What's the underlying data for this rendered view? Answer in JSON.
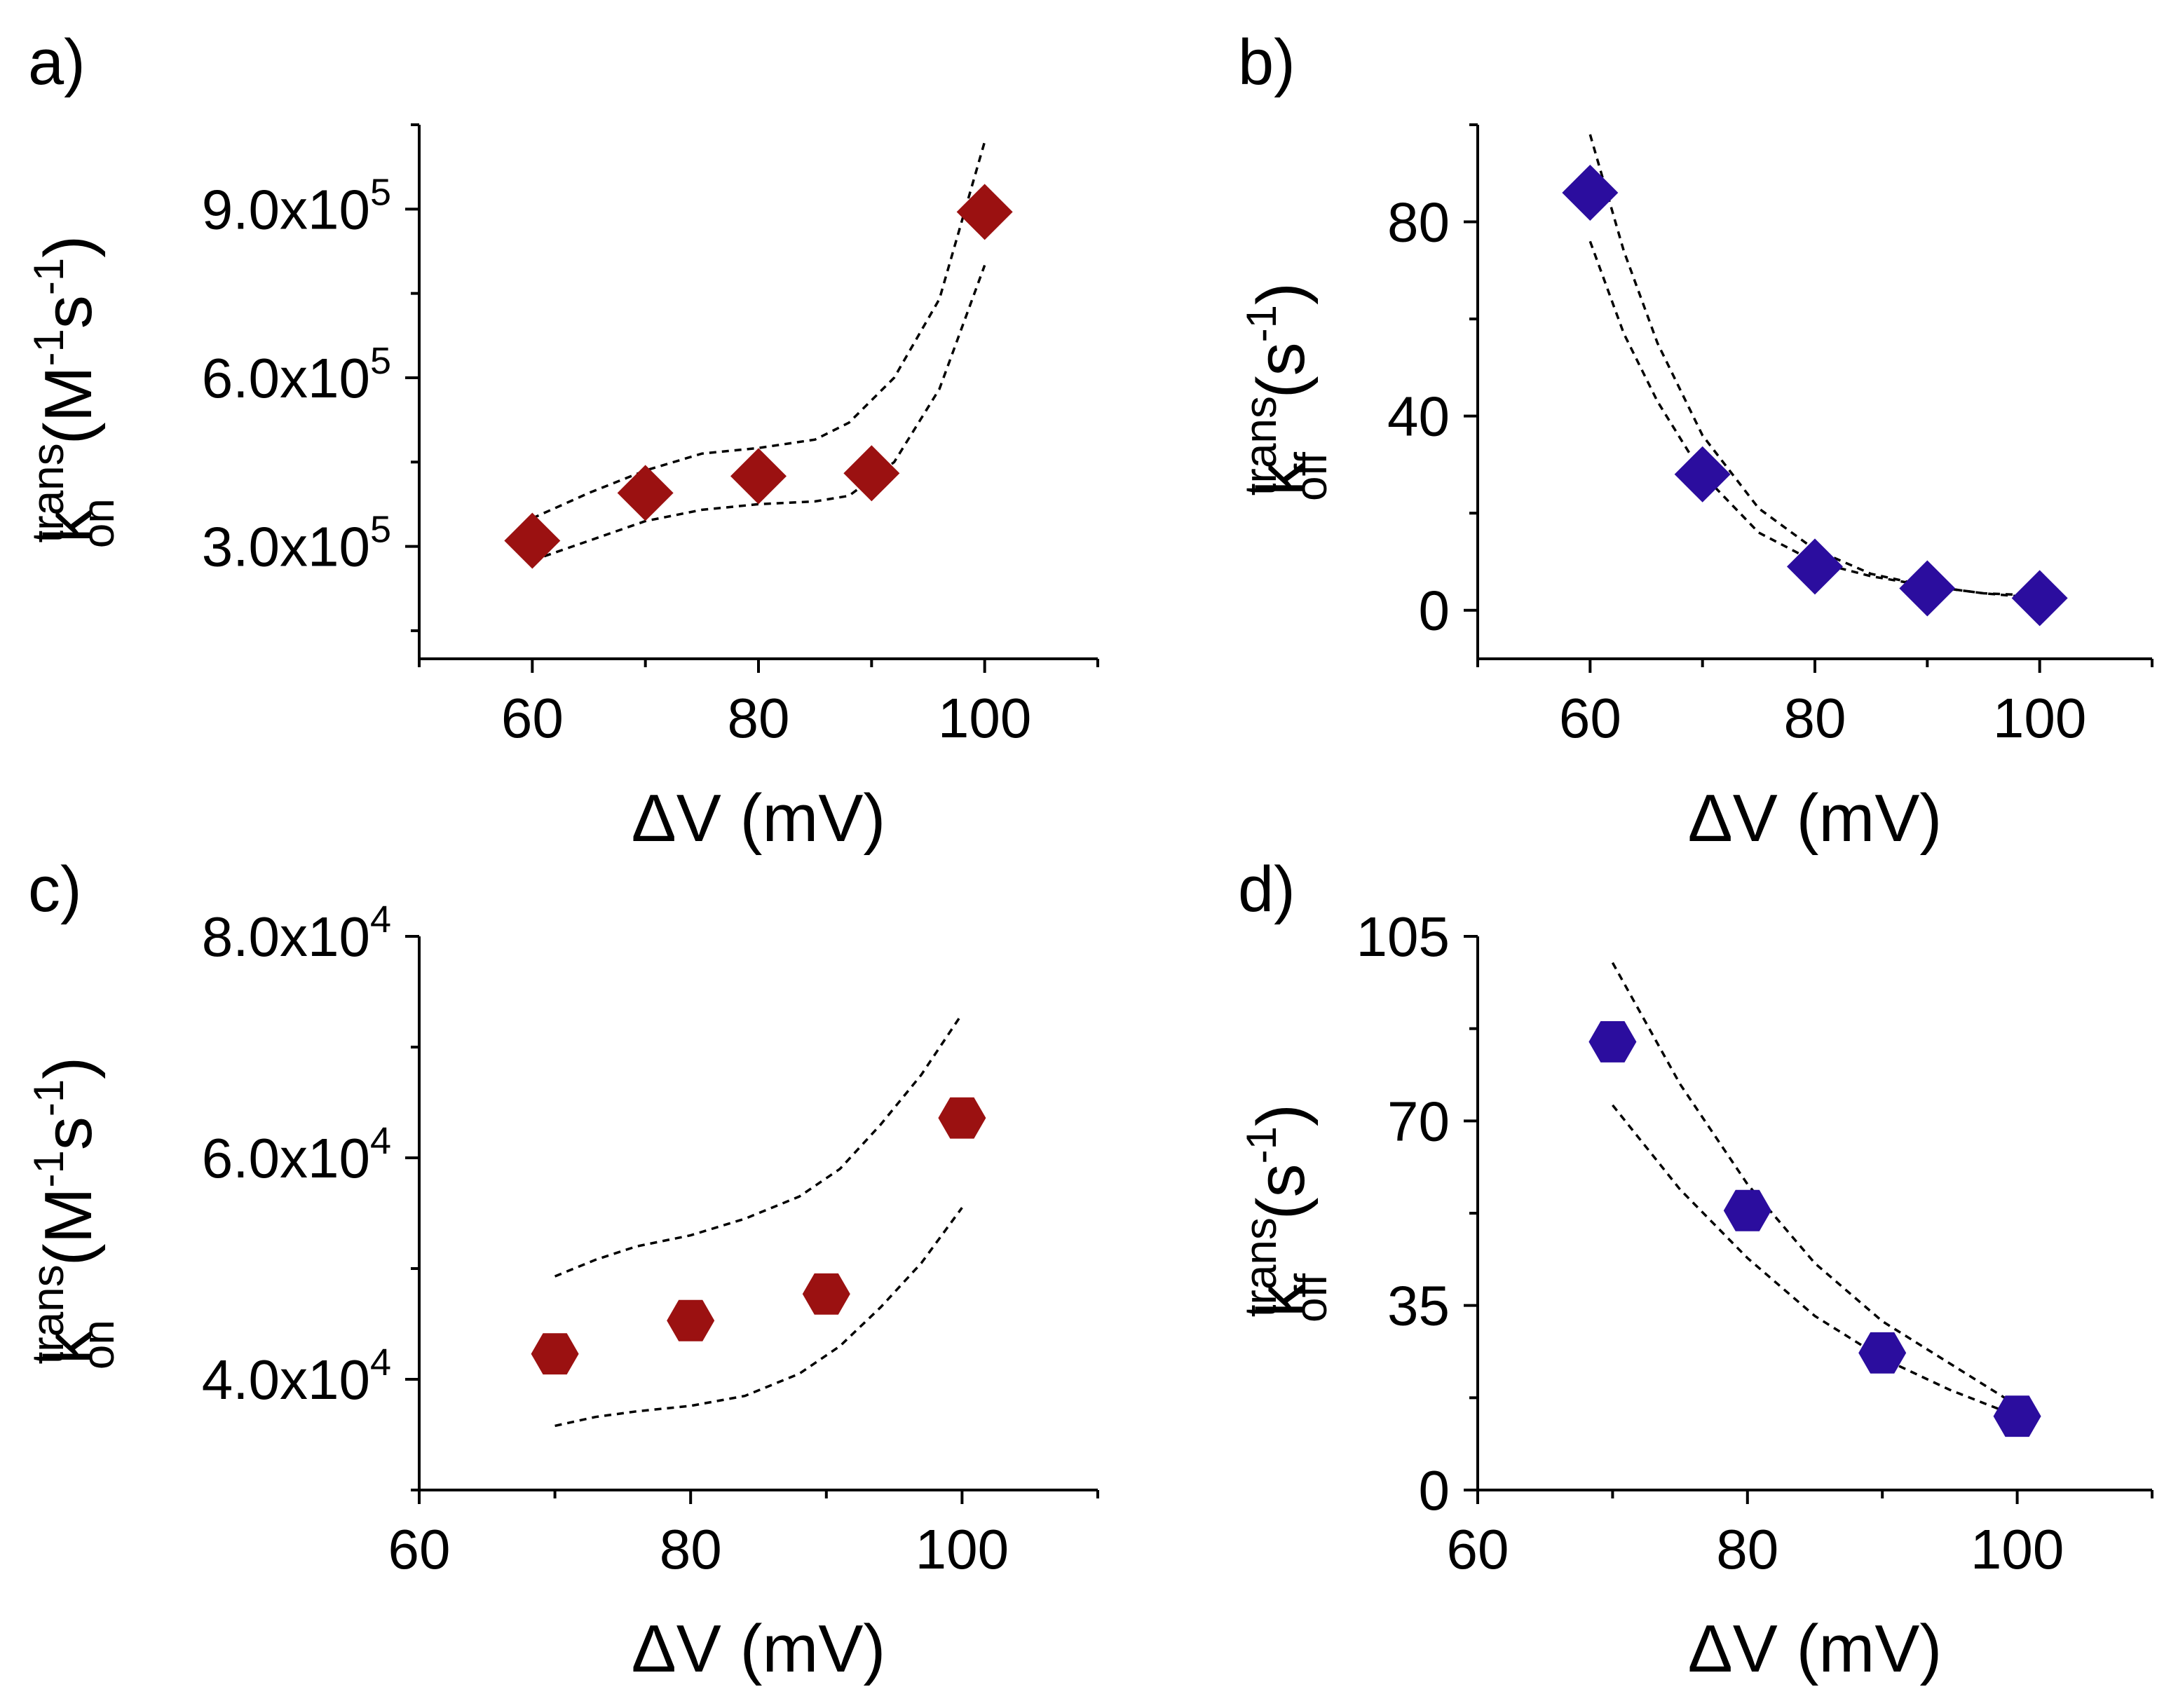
{
  "colors": {
    "red": "#9b1111",
    "blue": "#2b0d9e"
  },
  "chart_data": [
    {
      "panel": "a)",
      "type": "scatter",
      "marker": "diamond",
      "color": "red",
      "xlabel": "ΔV (mV)",
      "ylabel": {
        "symbol": "k",
        "sup": "trans",
        "sub": "on",
        "units": "(M",
        "u_sup1": "-1",
        "u_mid": "s",
        "u_sup2": "-1",
        "close": ")"
      },
      "xlim": [
        50,
        110
      ],
      "ylim": [
        100000,
        1050000
      ],
      "xticks": [
        60,
        80,
        100
      ],
      "xtick_labels": [
        "60",
        "80",
        "100"
      ],
      "yticks": [
        300000,
        600000,
        900000
      ],
      "ytick_labels": [
        {
          "mantissa": "3.0x10",
          "exp": "5"
        },
        {
          "mantissa": "6.0x10",
          "exp": "5"
        },
        {
          "mantissa": "9.0x10",
          "exp": "5"
        }
      ],
      "x": [
        60,
        70,
        80,
        90,
        100
      ],
      "y": [
        310000,
        395000,
        425000,
        430000,
        895000
      ],
      "bands": [
        {
          "name": "upper",
          "x": [
            60,
            65,
            70,
            75,
            80,
            85,
            88,
            92,
            96,
            100
          ],
          "y": [
            350000,
            395000,
            435000,
            465000,
            475000,
            490000,
            520000,
            600000,
            740000,
            1020000
          ]
        },
        {
          "name": "lower",
          "x": [
            60,
            65,
            70,
            75,
            80,
            85,
            88,
            92,
            96,
            100
          ],
          "y": [
            275000,
            310000,
            345000,
            365000,
            375000,
            380000,
            390000,
            450000,
            580000,
            800000
          ]
        }
      ]
    },
    {
      "panel": "b)",
      "type": "scatter",
      "marker": "diamond",
      "color": "blue",
      "xlabel": "ΔV (mV)",
      "ylabel": {
        "symbol": "k",
        "sup": "trans",
        "sub": "off",
        "units": "(s",
        "u_sup1": "-1",
        "u_mid": "",
        "u_sup2": "",
        "close": ")"
      },
      "xlim": [
        50,
        110
      ],
      "ylim": [
        -10,
        100
      ],
      "xticks": [
        60,
        80,
        100
      ],
      "xtick_labels": [
        "60",
        "80",
        "100"
      ],
      "yticks": [
        0,
        40,
        80
      ],
      "ytick_labels": [
        {
          "mantissa": "0",
          "exp": ""
        },
        {
          "mantissa": "40",
          "exp": ""
        },
        {
          "mantissa": "80",
          "exp": ""
        }
      ],
      "x": [
        60,
        70,
        80,
        90,
        100
      ],
      "y": [
        86,
        28,
        9,
        4.5,
        2.5
      ],
      "bands": [
        {
          "name": "upper",
          "x": [
            60,
            63,
            66,
            70,
            75,
            80,
            85,
            90,
            95,
            100
          ],
          "y": [
            98,
            74,
            55,
            36,
            21,
            12.5,
            7.5,
            5,
            3.5,
            3
          ]
        },
        {
          "name": "lower",
          "x": [
            60,
            63,
            66,
            70,
            75,
            80,
            85,
            90,
            95,
            100
          ],
          "y": [
            76,
            57,
            43,
            28,
            16,
            10,
            7,
            5,
            3.5,
            2.5
          ]
        }
      ]
    },
    {
      "panel": "c)",
      "type": "scatter",
      "marker": "hexagon",
      "color": "red",
      "xlabel": "ΔV (mV)",
      "ylabel": {
        "symbol": "k",
        "sup": "trans",
        "sub": "on",
        "units": "(M",
        "u_sup1": "-1",
        "u_mid": "s",
        "u_sup2": "-1",
        "close": ")"
      },
      "xlim": [
        60,
        110
      ],
      "ylim": [
        30000,
        80000
      ],
      "xticks": [
        60,
        80,
        100
      ],
      "xtick_labels": [
        "60",
        "80",
        "100"
      ],
      "yticks": [
        40000,
        60000,
        80000
      ],
      "ytick_labels": [
        {
          "mantissa": "4.0x10",
          "exp": "4"
        },
        {
          "mantissa": "6.0x10",
          "exp": "4"
        },
        {
          "mantissa": "8.0x10",
          "exp": "4"
        }
      ],
      "x": [
        70,
        80,
        90,
        100
      ],
      "y": [
        42300,
        45300,
        47700,
        63600
      ],
      "bands": [
        {
          "name": "upper",
          "x": [
            70,
            73,
            76,
            80,
            84,
            88,
            91,
            94,
            97,
            100
          ],
          "y": [
            49300,
            50800,
            52000,
            53000,
            54500,
            56500,
            59000,
            63000,
            67500,
            73000
          ]
        },
        {
          "name": "lower",
          "x": [
            70,
            73,
            76,
            80,
            84,
            88,
            91,
            94,
            97,
            100
          ],
          "y": [
            35800,
            36600,
            37100,
            37600,
            38500,
            40500,
            43000,
            46500,
            50500,
            55500
          ]
        }
      ]
    },
    {
      "panel": "d)",
      "type": "scatter",
      "marker": "hexagon",
      "color": "blue",
      "xlabel": "ΔV (mV)",
      "ylabel": {
        "symbol": "k",
        "sup": "trans",
        "sub": "off",
        "units": "(s",
        "u_sup1": "-1",
        "u_mid": "",
        "u_sup2": "",
        "close": ")"
      },
      "xlim": [
        60,
        110
      ],
      "ylim": [
        0,
        105
      ],
      "xticks": [
        60,
        80,
        100
      ],
      "xtick_labels": [
        "60",
        "80",
        "100"
      ],
      "yticks": [
        0,
        35,
        70,
        105
      ],
      "ytick_labels": [
        {
          "mantissa": "0",
          "exp": ""
        },
        {
          "mantissa": "35",
          "exp": ""
        },
        {
          "mantissa": "70",
          "exp": ""
        },
        {
          "mantissa": "105",
          "exp": ""
        }
      ],
      "x": [
        70,
        80,
        90,
        100
      ],
      "y": [
        85,
        53,
        26,
        14
      ],
      "bands": [
        {
          "name": "upper",
          "x": [
            70,
            75,
            80,
            85,
            90,
            95,
            100
          ],
          "y": [
            100,
            77,
            58,
            43,
            32,
            24,
            16
          ]
        },
        {
          "name": "lower",
          "x": [
            70,
            75,
            80,
            85,
            90,
            95,
            100
          ],
          "y": [
            73,
            57,
            44,
            33,
            25,
            19,
            14
          ]
        }
      ]
    }
  ]
}
